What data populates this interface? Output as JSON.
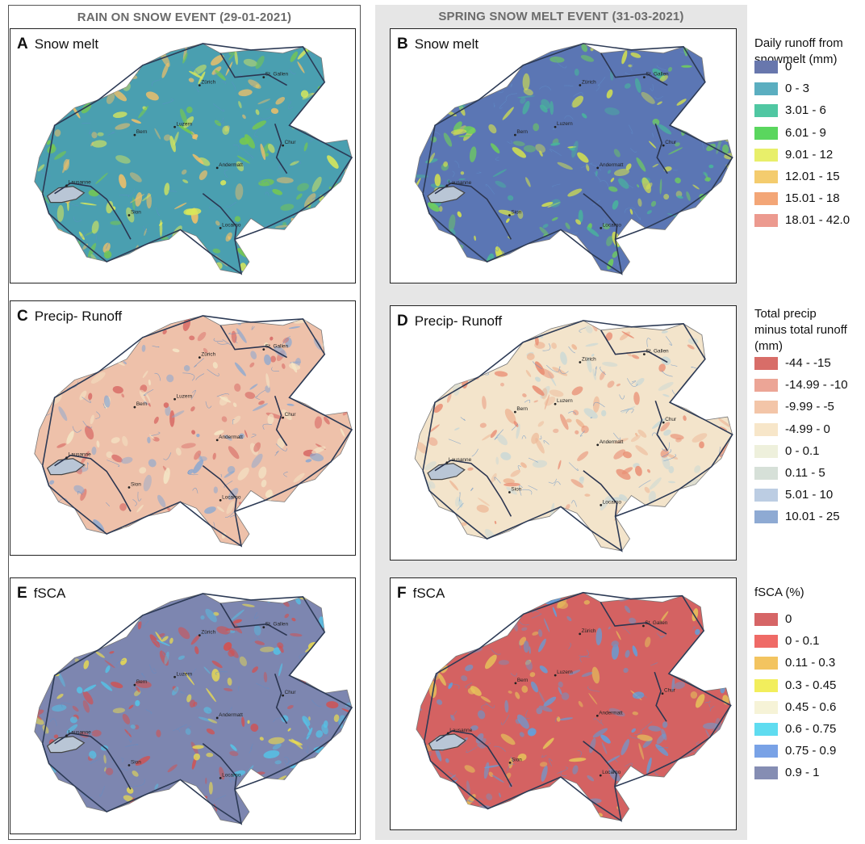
{
  "columns": [
    {
      "title": "RAIN ON SNOW EVENT (29-01-2021)"
    },
    {
      "title": "SPRING SNOW MELT EVENT (31-03-2021)"
    }
  ],
  "panels": [
    {
      "letter": "A",
      "label": "Snow melt",
      "base": "#4a9fb0",
      "accents": [
        "#77c94d",
        "#d9e85a",
        "#f0c068"
      ]
    },
    {
      "letter": "B",
      "label": "Snow melt",
      "base": "#5b76b4",
      "accents": [
        "#48b59c",
        "#6fcf5c",
        "#d6e34c"
      ]
    },
    {
      "letter": "C",
      "label": "Precip- Runoff",
      "base": "#eec1aa",
      "accents": [
        "#d86b66",
        "#8fa9cf",
        "#f4e6c6"
      ]
    },
    {
      "letter": "D",
      "label": "Precip- Runoff",
      "base": "#f3e4cb",
      "accents": [
        "#eeb897",
        "#e99076",
        "#c9d8d6"
      ]
    },
    {
      "letter": "E",
      "label": "fSCA",
      "base": "#7d86b0",
      "accents": [
        "#d4504f",
        "#f0e04c",
        "#55c2e6"
      ]
    },
    {
      "letter": "F",
      "label": "fSCA",
      "base": "#d46262",
      "accents": [
        "#7f8cb6",
        "#5da2e0",
        "#e6c35a"
      ]
    }
  ],
  "place_names": [
    "Zürich",
    "St. Gallen",
    "Luzern",
    "Bern",
    "Chur",
    "Andermatt",
    "Lausanne",
    "Sion",
    "Locarno"
  ],
  "legends": [
    {
      "title_lines": [
        "Daily runoff from",
        "snowmelt (mm)"
      ],
      "items": [
        {
          "label": "0",
          "color": "#6877ad"
        },
        {
          "label": "0 - 3",
          "color": "#5baec0"
        },
        {
          "label": "3.01 - 6",
          "color": "#50c7a2"
        },
        {
          "label": "6.01 - 9",
          "color": "#5ad65e"
        },
        {
          "label": "9.01 - 12",
          "color": "#e8ef6a"
        },
        {
          "label": "12.01 - 15",
          "color": "#f4cc6e"
        },
        {
          "label": "15.01 - 18",
          "color": "#f3a677"
        },
        {
          "label": "18.01 - 42.0",
          "color": "#ec9a8f"
        }
      ]
    },
    {
      "title_lines": [
        "Total precip",
        "minus total runoff",
        "(mm)"
      ],
      "items": [
        {
          "label": "-44 - -15",
          "color": "#d86d68"
        },
        {
          "label": "-14.99 - -10",
          "color": "#eca596"
        },
        {
          "label": "-9.99 - -5",
          "color": "#f3c5a8"
        },
        {
          "label": "-4.99 - 0",
          "color": "#f7e6c9"
        },
        {
          "label": "0 - 0.1",
          "color": "#eef0dc"
        },
        {
          "label": "0.11 - 5",
          "color": "#d6e0d8"
        },
        {
          "label": "5.01 - 10",
          "color": "#bccde3"
        },
        {
          "label": "10.01 - 25",
          "color": "#8eaad3"
        }
      ]
    },
    {
      "title_lines": [
        "fSCA (%)"
      ],
      "items": [
        {
          "label": "0",
          "color": "#d66566"
        },
        {
          "label": "0 - 0.1",
          "color": "#ef6a66"
        },
        {
          "label": "0.11 - 0.3",
          "color": "#f3c460"
        },
        {
          "label": "0.3 - 0.45",
          "color": "#f2ee5c"
        },
        {
          "label": "0.45 - 0.6",
          "color": "#f6f3d7"
        },
        {
          "label": "0.6 - 0.75",
          "color": "#5fdcf0"
        },
        {
          "label": "0.75 - 0.9",
          "color": "#79a2e6"
        },
        {
          "label": "0.9 - 1",
          "color": "#858db3"
        }
      ]
    }
  ]
}
